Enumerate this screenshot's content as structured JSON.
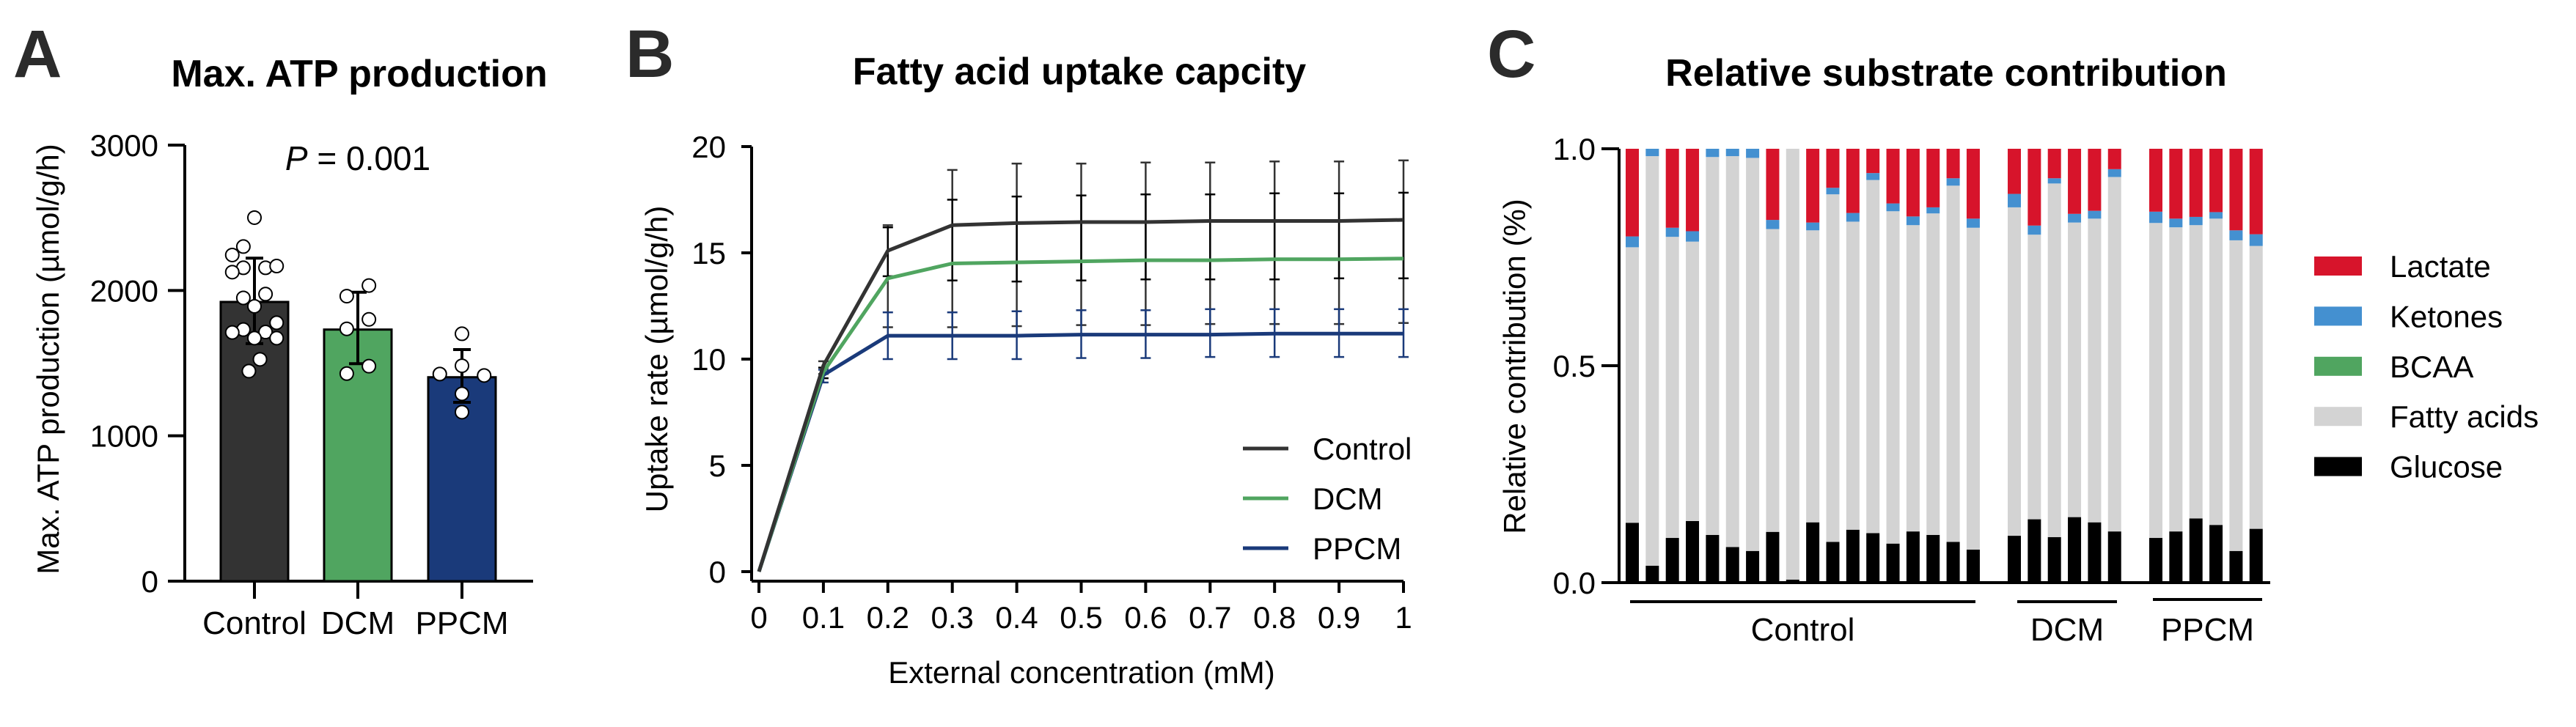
{
  "figure": {
    "panels": [
      "A",
      "B",
      "C"
    ]
  },
  "chart_data": [
    {
      "id": "A",
      "type": "bar",
      "panel_label": "A",
      "title": "Max. ATP production",
      "ylabel": "Max. ATP production (µmol/g/h)",
      "xlabel": "",
      "ylim": [
        0,
        3000
      ],
      "yticks": [
        0,
        1000,
        2000,
        3000
      ],
      "annotation": {
        "italic": "P",
        "text": " = 0.001"
      },
      "categories": [
        "Control",
        "DCM",
        "PPCM"
      ],
      "colors": [
        "#333333",
        "#50A560",
        "#1A3A7A"
      ],
      "values": [
        1921,
        1731,
        1403
      ],
      "error_upper": [
        2222,
        1988,
        1593
      ],
      "error_lower": [
        1634,
        1496,
        1230
      ],
      "points": [
        [
          2501,
          2302,
          2244,
          2156,
          2126,
          2156,
          2168,
          1949,
          1975,
          1891,
          1778,
          1731,
          1711,
          1714,
          1672,
          1672,
          1526,
          1445
        ],
        [
          2034,
          1961,
          1801,
          1736,
          1479,
          1428
        ],
        [
          1702,
          1482,
          1425,
          1415,
          1289,
          1163
        ]
      ],
      "point_offsets": [
        [
          0,
          -0.4,
          -0.8,
          -0.4,
          -0.8,
          0.4,
          0.8,
          -0.4,
          0.4,
          0,
          0.8,
          -0.4,
          -0.8,
          0.4,
          0,
          0.8,
          0.2,
          -0.2
        ],
        [
          0.4,
          -0.4,
          0.4,
          -0.4,
          0.4,
          -0.4
        ],
        [
          0,
          0,
          -0.8,
          0.8,
          0,
          0
        ]
      ]
    },
    {
      "id": "B",
      "type": "line",
      "panel_label": "B",
      "title": "Fatty acid uptake capcity",
      "xlabel": "External concentration (mM)",
      "ylabel": "Uptake rate (µmol/g/h)",
      "xlim": [
        0,
        1
      ],
      "ylim": [
        0,
        20
      ],
      "xticks": [
        0,
        0.1,
        0.2,
        0.3,
        0.4,
        0.5,
        0.6,
        0.7,
        0.8,
        0.9,
        1
      ],
      "xtick_labels": [
        "0",
        "0.1",
        "0.2",
        "0.3",
        "0.4",
        "0.5",
        "0.6",
        "0.7",
        "0.8",
        "0.9",
        "1"
      ],
      "yticks": [
        0,
        5,
        10,
        15,
        20
      ],
      "legend_position": "lower-right",
      "x": [
        0,
        0.1,
        0.2,
        0.3,
        0.4,
        0.5,
        0.6,
        0.7,
        0.8,
        0.9,
        1
      ],
      "series": [
        {
          "name": "Control",
          "color": "#333333",
          "values": [
            0,
            9.7,
            15.1,
            16.3,
            16.4,
            16.45,
            16.45,
            16.5,
            16.5,
            16.5,
            16.55
          ],
          "error_upper": [
            0,
            9.9,
            16.3,
            18.9,
            19.2,
            19.2,
            19.25,
            19.25,
            19.3,
            19.3,
            19.35
          ],
          "error_lower": [
            0,
            9.3,
            11.5,
            11.5,
            11.55,
            11.6,
            11.6,
            11.65,
            11.65,
            11.65,
            11.7
          ]
        },
        {
          "name": "DCM",
          "color": "#50A560",
          "values": [
            0,
            9.4,
            13.8,
            14.5,
            14.55,
            14.6,
            14.65,
            14.65,
            14.7,
            14.7,
            14.73
          ],
          "error_upper": [
            0,
            9.6,
            16.2,
            17.5,
            17.65,
            17.7,
            17.75,
            17.75,
            17.8,
            17.8,
            17.83
          ],
          "error_lower": [
            0,
            9.1,
            13.9,
            13.7,
            13.65,
            13.7,
            13.75,
            13.75,
            13.75,
            13.8,
            13.8
          ]
        },
        {
          "name": "PPCM",
          "color": "#1A3A7A",
          "values": [
            0,
            9.25,
            11.1,
            11.1,
            11.1,
            11.15,
            11.15,
            11.15,
            11.2,
            11.2,
            11.2
          ],
          "error_upper": [
            0,
            9.5,
            12.2,
            12.2,
            12.25,
            12.3,
            12.3,
            12.35,
            12.35,
            12.35,
            12.35
          ],
          "error_lower": [
            0,
            8.9,
            10.0,
            10.0,
            10.0,
            10.05,
            10.05,
            10.1,
            10.1,
            10.1,
            10.1
          ]
        }
      ]
    },
    {
      "id": "C",
      "type": "bar",
      "stacked": true,
      "panel_label": "C",
      "title": "Relative substrate contribution",
      "ylabel": "Relative contribution (%)",
      "xlabel": "",
      "ylim": [
        0,
        1.0
      ],
      "yticks": [
        0,
        0.5,
        1.0
      ],
      "ytick_labels": [
        "0.0",
        "0.5",
        "1.0"
      ],
      "legend_position": "right",
      "groups": [
        {
          "name": "Control",
          "count": 18
        },
        {
          "name": "DCM",
          "count": 6
        },
        {
          "name": "PPCM",
          "count": 6
        }
      ],
      "legend": [
        {
          "name": "Lactate",
          "color": "#D7142B"
        },
        {
          "name": "Ketones",
          "color": "#4490D0"
        },
        {
          "name": "BCAA",
          "color": "#50A560"
        },
        {
          "name": "Fatty acids",
          "color": "#D3D3D3"
        },
        {
          "name": "Glucose",
          "color": "#000000"
        }
      ],
      "series": [
        {
          "name": "Glucose",
          "color": "#000000",
          "values": [
            0.138,
            0.039,
            0.103,
            0.142,
            0.11,
            0.082,
            0.073,
            0.117,
            0.007,
            0.139,
            0.094,
            0.122,
            0.114,
            0.09,
            0.118,
            0.11,
            0.094,
            0.076,
            0.108,
            0.146,
            0.105,
            0.151,
            0.139,
            0.118,
            0.103,
            0.118,
            0.148,
            0.133,
            0.073,
            0.124
          ]
        },
        {
          "name": "Fatty acids",
          "color": "#D3D3D3",
          "values": [
            0.635,
            0.944,
            0.694,
            0.644,
            0.871,
            0.901,
            0.906,
            0.698,
            0.993,
            0.673,
            0.801,
            0.71,
            0.814,
            0.766,
            0.706,
            0.741,
            0.821,
            0.742,
            0.757,
            0.656,
            0.815,
            0.679,
            0.7,
            0.817,
            0.726,
            0.701,
            0.676,
            0.706,
            0.716,
            0.652
          ]
        },
        {
          "name": "BCAA",
          "color": "#50A560",
          "values": [
            0,
            0,
            0,
            0,
            0,
            0,
            0,
            0,
            0,
            0,
            0,
            0,
            0,
            0,
            0,
            0,
            0,
            0,
            0,
            0,
            0,
            0,
            0,
            0,
            0,
            0,
            0,
            0,
            0,
            0
          ]
        },
        {
          "name": "Ketones",
          "color": "#4490D0",
          "values": [
            0.025,
            0.017,
            0.021,
            0.024,
            0.019,
            0.017,
            0.021,
            0.021,
            0,
            0.018,
            0.015,
            0.02,
            0.016,
            0.018,
            0.02,
            0.014,
            0.017,
            0.021,
            0.031,
            0.021,
            0.012,
            0.02,
            0.018,
            0.018,
            0.026,
            0.02,
            0.019,
            0.015,
            0.023,
            0.027
          ]
        },
        {
          "name": "Lactate",
          "color": "#D7142B",
          "values": [
            0.202,
            0,
            0.182,
            0.19,
            0,
            0,
            0,
            0.164,
            0,
            0.17,
            0.09,
            0.148,
            0.056,
            0.126,
            0.156,
            0.135,
            0.068,
            0.161,
            0.104,
            0.177,
            0.068,
            0.15,
            0.143,
            0.047,
            0.145,
            0.161,
            0.157,
            0.146,
            0.188,
            0.197
          ]
        }
      ]
    }
  ]
}
